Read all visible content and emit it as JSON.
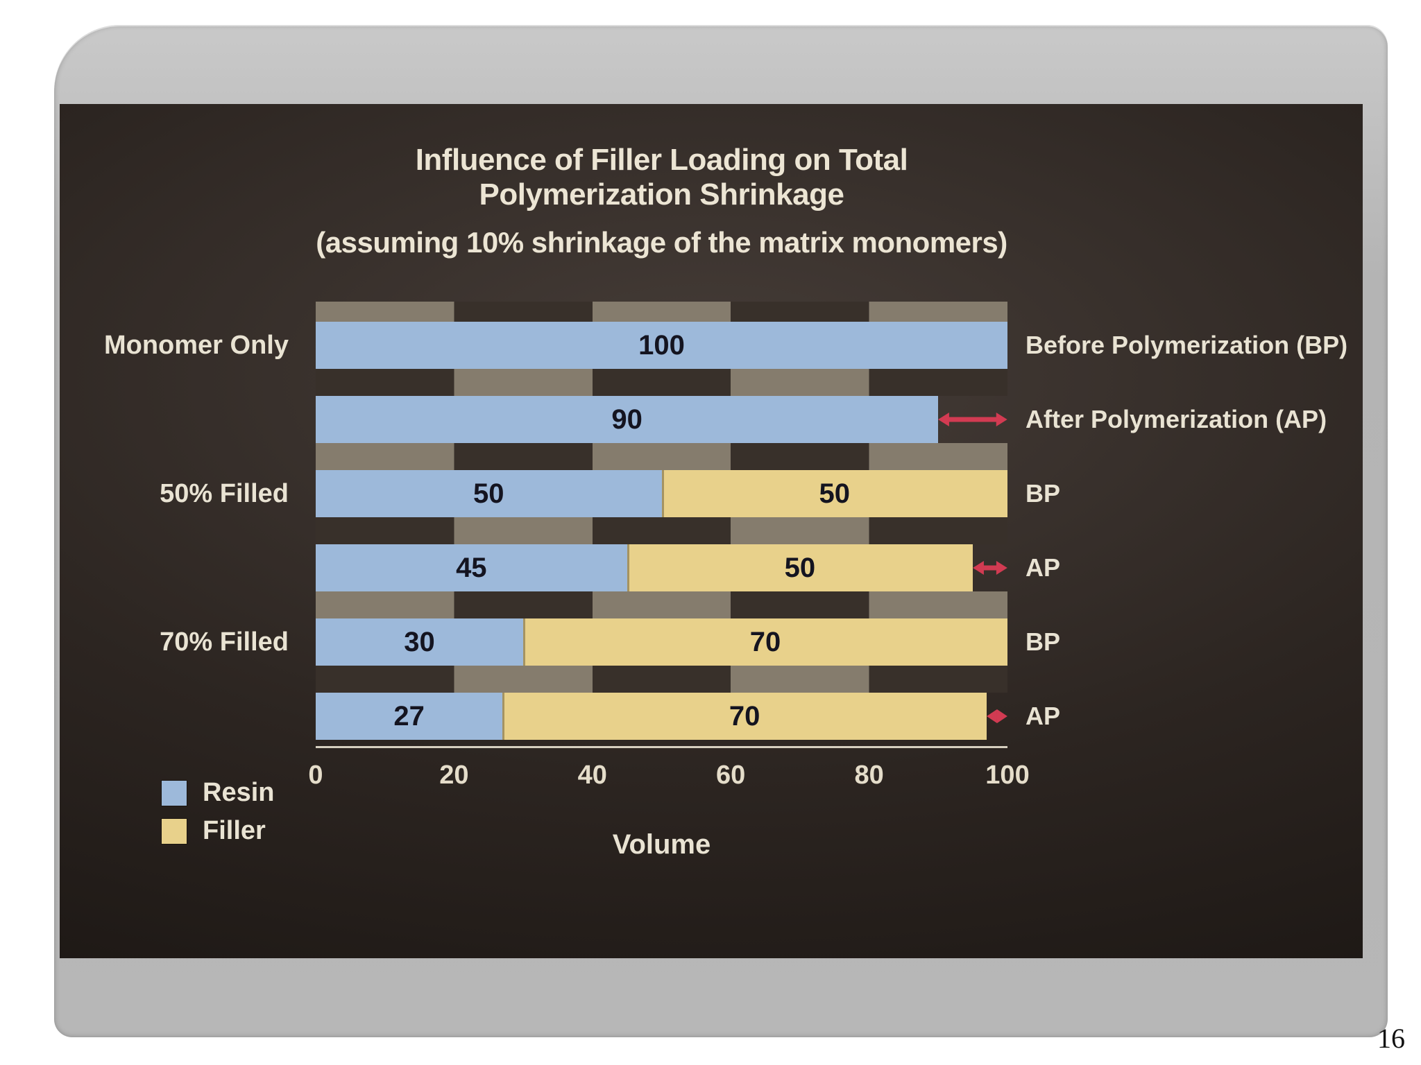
{
  "page_number": "16",
  "colors": {
    "resin": "#9db9da",
    "filler": "#e8d18b",
    "arrow": "#d23b52",
    "chart_background": "#2c2521",
    "chart_text": "#e9e3d3",
    "value_text": "#141420"
  },
  "chart_data": {
    "type": "bar",
    "orientation": "horizontal",
    "stacked": true,
    "title": "Influence of Filler Loading on Total Polymerization Shrinkage",
    "subtitle": "(assuming 10% shrinkage of the matrix monomers)",
    "xlabel": "Volume",
    "xlim": [
      0,
      100
    ],
    "x_ticks": [
      0,
      20,
      40,
      60,
      80,
      100
    ],
    "legend_position": "bottom-left",
    "grid": "checkered-band-rows",
    "legend": [
      {
        "label": "Resin",
        "color": "#9db9da"
      },
      {
        "label": "Filler",
        "color": "#e8d18b"
      }
    ],
    "rows": [
      {
        "group": "Monomer Only",
        "stage": "Before Polymerization (BP)",
        "resin": 100,
        "filler": 0,
        "arrow": false
      },
      {
        "group": "",
        "stage": "After Polymerization (AP)",
        "resin": 90,
        "filler": 0,
        "arrow": true
      },
      {
        "group": "50% Filled",
        "stage": "BP",
        "resin": 50,
        "filler": 50,
        "arrow": false
      },
      {
        "group": "",
        "stage": "AP",
        "resin": 45,
        "filler": 50,
        "arrow": true
      },
      {
        "group": "70% Filled",
        "stage": "BP",
        "resin": 30,
        "filler": 70,
        "arrow": false
      },
      {
        "group": "",
        "stage": "AP",
        "resin": 27,
        "filler": 70,
        "arrow": true
      }
    ]
  }
}
